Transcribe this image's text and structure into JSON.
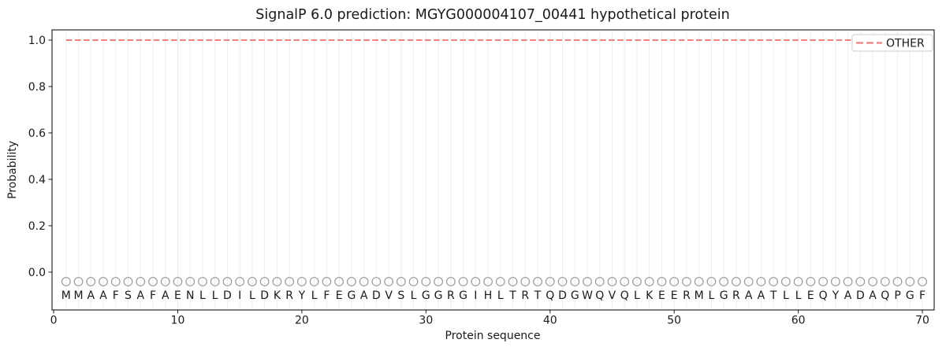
{
  "chart_data": {
    "type": "line",
    "title": "SignalP 6.0 prediction: MGYG000004107_00441 hypothetical protein",
    "xlabel": "Protein sequence",
    "ylabel": "Probability",
    "xlim": [
      -0.13,
      70.95
    ],
    "ylim": [
      -0.163,
      1.044
    ],
    "xticks": [
      0,
      10,
      20,
      30,
      40,
      50,
      60,
      70
    ],
    "yticks": [
      "0.0",
      "0.2",
      "0.4",
      "0.6",
      "0.8",
      "1.0"
    ],
    "grid": {
      "show": true,
      "orientation": "vertical",
      "per_residue": true,
      "color": "#ededed"
    },
    "legend": {
      "position": "upper-right",
      "entries": [
        {
          "label": "OTHER",
          "color": "#f08080",
          "linestyle": "dashed"
        }
      ]
    },
    "series": [
      {
        "name": "OTHER",
        "color": "#f08080",
        "linestyle": "dashed",
        "linewidth": 2,
        "x": [
          1,
          2,
          3,
          4,
          5,
          6,
          7,
          8,
          9,
          10,
          11,
          12,
          13,
          14,
          15,
          16,
          17,
          18,
          19,
          20,
          21,
          22,
          23,
          24,
          25,
          26,
          27,
          28,
          29,
          30,
          31,
          32,
          33,
          34,
          35,
          36,
          37,
          38,
          39,
          40,
          41,
          42,
          43,
          44,
          45,
          46,
          47,
          48,
          49,
          50,
          51,
          52,
          53,
          54,
          55,
          56,
          57,
          58,
          59,
          60,
          61,
          62,
          63,
          64,
          65,
          66,
          67,
          68,
          69,
          70
        ],
        "values": [
          1.0,
          1.0,
          1.0,
          1.0,
          1.0,
          1.0,
          1.0,
          1.0,
          1.0,
          1.0,
          1.0,
          1.0,
          1.0,
          1.0,
          1.0,
          1.0,
          1.0,
          1.0,
          1.0,
          1.0,
          1.0,
          1.0,
          1.0,
          1.0,
          1.0,
          1.0,
          1.0,
          1.0,
          1.0,
          1.0,
          1.0,
          1.0,
          1.0,
          1.0,
          1.0,
          1.0,
          1.0,
          1.0,
          1.0,
          1.0,
          1.0,
          1.0,
          1.0,
          1.0,
          1.0,
          1.0,
          1.0,
          1.0,
          1.0,
          1.0,
          1.0,
          1.0,
          1.0,
          1.0,
          1.0,
          1.0,
          1.0,
          1.0,
          1.0,
          1.0,
          1.0,
          1.0,
          1.0,
          1.0,
          1.0,
          1.0,
          1.0,
          1.0,
          1.0,
          1.0
        ]
      }
    ],
    "sequence": {
      "residues": "MMAAFSAFAENLLDILDKRYLFEGADVSLGGRGIHLTRTQDGWQVQLKEERMLGRAATLLEQYADAQPGF",
      "length": 70,
      "marker": {
        "glyph": "O",
        "shape": "circle-outline",
        "color": "#999999"
      },
      "letter_color": "#1f1f1f"
    }
  }
}
